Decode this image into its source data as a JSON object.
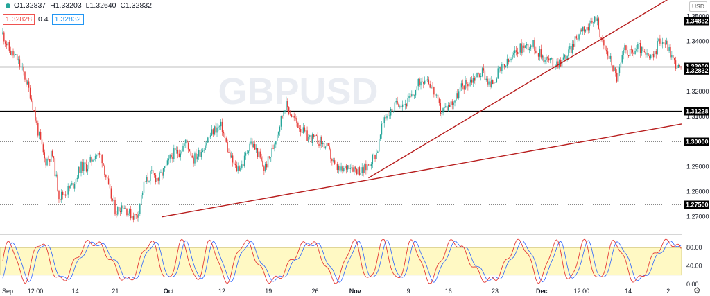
{
  "ohlc": {
    "open": "O1.32837",
    "high": "H1.33203",
    "low": "L1.32640",
    "close": "C1.32832"
  },
  "bid_ask": {
    "bid": "1.32828",
    "spread": "0.4",
    "ask": "1.32832"
  },
  "currency": "USD",
  "settings_icon": "gear-icon",
  "colors": {
    "bull": "#26a69a",
    "bear": "#e53935",
    "trendline": "#b71c1c",
    "level": "#000000",
    "stoch_k": "#e53935",
    "stoch_d": "#2962ff",
    "stoch_band": "#fff9c4"
  },
  "chart_data": {
    "type": "candlestick",
    "symbol_watermark": "GBPUSD",
    "price_axis": {
      "range": [
        1.263,
        1.3565
      ],
      "ticks": [
        "1.35000",
        "1.34000",
        "1.33000",
        "1.32000",
        "1.31000",
        "1.30000",
        "1.29000",
        "1.28000",
        "1.27000"
      ],
      "ticks_num": [
        1.35,
        1.34,
        1.33,
        1.32,
        1.31,
        1.3,
        1.29,
        1.28,
        1.27
      ],
      "grid": false
    },
    "time_axis": {
      "labels": [
        "Sep",
        "12:00",
        "14",
        "21",
        "Oct",
        "12",
        "19",
        "26",
        "Nov",
        "9",
        "16",
        "23",
        "Dec",
        "12:00",
        "14",
        "2"
      ],
      "label_index": [
        0,
        5,
        11,
        17,
        25,
        33,
        40,
        47,
        53,
        61,
        67,
        74,
        81,
        87,
        94,
        100
      ],
      "bold": [
        "Oct",
        "Nov",
        "Dec"
      ],
      "n_bars": 102
    },
    "candles_path": [
      1.343,
      1.336,
      1.333,
      1.327,
      1.318,
      1.304,
      1.292,
      1.295,
      1.278,
      1.28,
      1.283,
      1.29,
      1.29,
      1.295,
      1.294,
      1.281,
      1.272,
      1.275,
      1.271,
      1.27,
      1.283,
      1.287,
      1.285,
      1.289,
      1.295,
      1.296,
      1.3,
      1.293,
      1.296,
      1.301,
      1.305,
      1.306,
      1.295,
      1.289,
      1.291,
      1.3,
      1.296,
      1.289,
      1.295,
      1.305,
      1.315,
      1.31,
      1.306,
      1.302,
      1.301,
      1.3,
      1.297,
      1.29,
      1.288,
      1.291,
      1.289,
      1.288,
      1.292,
      1.296,
      1.31,
      1.312,
      1.316,
      1.315,
      1.318,
      1.324,
      1.326,
      1.32,
      1.312,
      1.314,
      1.317,
      1.322,
      1.324,
      1.326,
      1.328,
      1.322,
      1.327,
      1.33,
      1.333,
      1.337,
      1.338,
      1.339,
      1.335,
      1.333,
      1.331,
      1.332,
      1.335,
      1.34,
      1.346,
      1.345,
      1.35,
      1.338,
      1.333,
      1.325,
      1.337,
      1.335,
      1.338,
      1.334,
      1.333,
      1.341,
      1.339,
      1.332,
      1.3283
    ],
    "horizontal_levels": [
      {
        "price": 1.33,
        "label": "1.33000",
        "style": "solid"
      },
      {
        "price": 1.31228,
        "label": "1.31228",
        "style": "solid"
      },
      {
        "price": 1.34832,
        "label": "1.34832",
        "style": "dotted"
      },
      {
        "price": 1.3,
        "label": "1.30000",
        "style": "dotted"
      },
      {
        "price": 1.275,
        "label": "1.27500",
        "style": "dotted"
      }
    ],
    "last_price": {
      "value": 1.32832,
      "label": "1.32832"
    },
    "trendlines": [
      {
        "from": {
          "bar": 24,
          "price": 1.27
        },
        "to": {
          "bar": 102,
          "price": 1.307
        }
      },
      {
        "from": {
          "bar": 55,
          "price": 1.2855
        },
        "to": {
          "bar": 102,
          "price": 1.36
        }
      }
    ],
    "stochastic": {
      "ticks": [
        "80.00",
        "40.00",
        "0.00"
      ],
      "ticks_num": [
        80,
        40,
        0
      ],
      "band": [
        20,
        80
      ],
      "range": [
        0,
        100
      ]
    }
  }
}
